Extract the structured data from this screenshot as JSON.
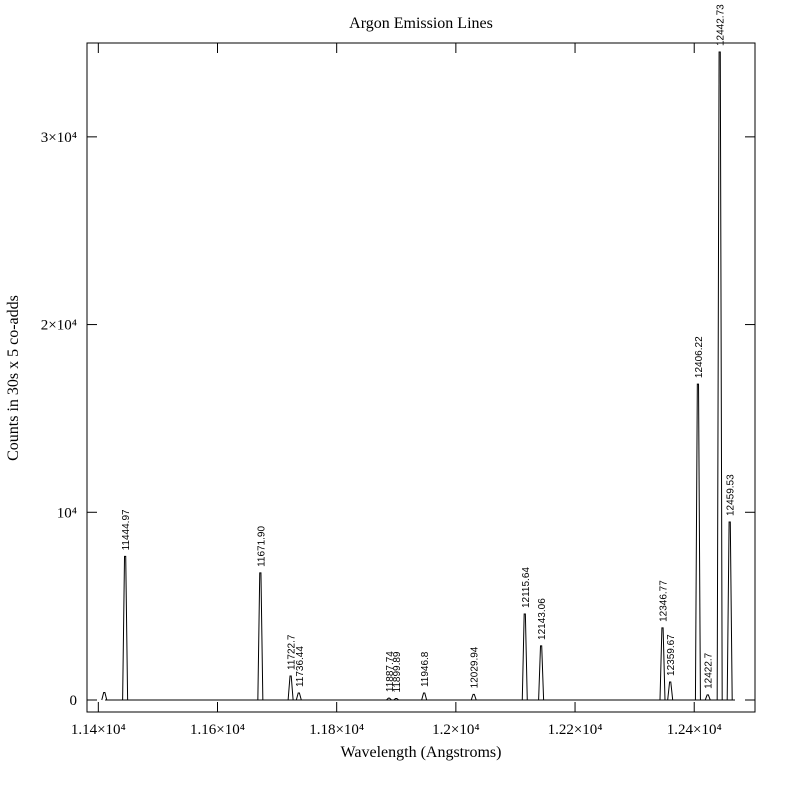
{
  "chart_data": {
    "type": "spectrum",
    "title": "Argon Emission Lines",
    "x_label": "Wavelength (Angstroms)",
    "y_label": "Counts in 30s x 5 co-adds",
    "xlim": [
      11381,
      12502
    ],
    "ylim": [
      -640,
      35000
    ],
    "xticks": [
      {
        "value": 11400,
        "label": "1.14×10⁴"
      },
      {
        "value": 11600,
        "label": "1.16×10⁴"
      },
      {
        "value": 11800,
        "label": "1.18×10⁴"
      },
      {
        "value": 12000,
        "label": "1.2×10⁴"
      },
      {
        "value": 12200,
        "label": "1.22×10⁴"
      },
      {
        "value": 12400,
        "label": "1.24×10⁴"
      }
    ],
    "yticks": [
      0,
      {
        "value": 10000,
        "label": "10⁴"
      },
      {
        "value": 20000,
        "label": "2×10⁴"
      },
      {
        "value": 30000,
        "label": "3×10⁴"
      }
    ],
    "color": "#000000",
    "lines": [
      {
        "label": null,
        "wavelength": 11410,
        "counts": 400
      },
      {
        "label": "11444.97",
        "wavelength": 11444.97,
        "counts": 7650
      },
      {
        "label": "11671.90",
        "wavelength": 11671.9,
        "counts": 6770
      },
      {
        "label": "11722.7",
        "wavelength": 11722.7,
        "counts": 1280
      },
      {
        "label": "11736.44",
        "wavelength": 11736.44,
        "counts": 370
      },
      {
        "label": "11887.74",
        "wavelength": 11887.74,
        "counts": 100
      },
      {
        "label": "11899.89",
        "wavelength": 11899.89,
        "counts": 80
      },
      {
        "label": "11946.8",
        "wavelength": 11946.8,
        "counts": 370
      },
      {
        "label": "12029.94",
        "wavelength": 12029.94,
        "counts": 300
      },
      {
        "label": "12115.64",
        "wavelength": 12115.64,
        "counts": 4580
      },
      {
        "label": "12143.06",
        "wavelength": 12143.06,
        "counts": 2880
      },
      {
        "label": "12346.77",
        "wavelength": 12346.77,
        "counts": 3840
      },
      {
        "label": "12359.67",
        "wavelength": 12359.67,
        "counts": 960
      },
      {
        "label": "12406.22",
        "wavelength": 12406.22,
        "counts": 16830
      },
      {
        "label": "12422.7",
        "wavelength": 12422.7,
        "counts": 270
      },
      {
        "label": "12442.73",
        "wavelength": 12442.73,
        "counts": 34520
      },
      {
        "label": "12459.53",
        "wavelength": 12459.53,
        "counts": 9480
      }
    ]
  }
}
